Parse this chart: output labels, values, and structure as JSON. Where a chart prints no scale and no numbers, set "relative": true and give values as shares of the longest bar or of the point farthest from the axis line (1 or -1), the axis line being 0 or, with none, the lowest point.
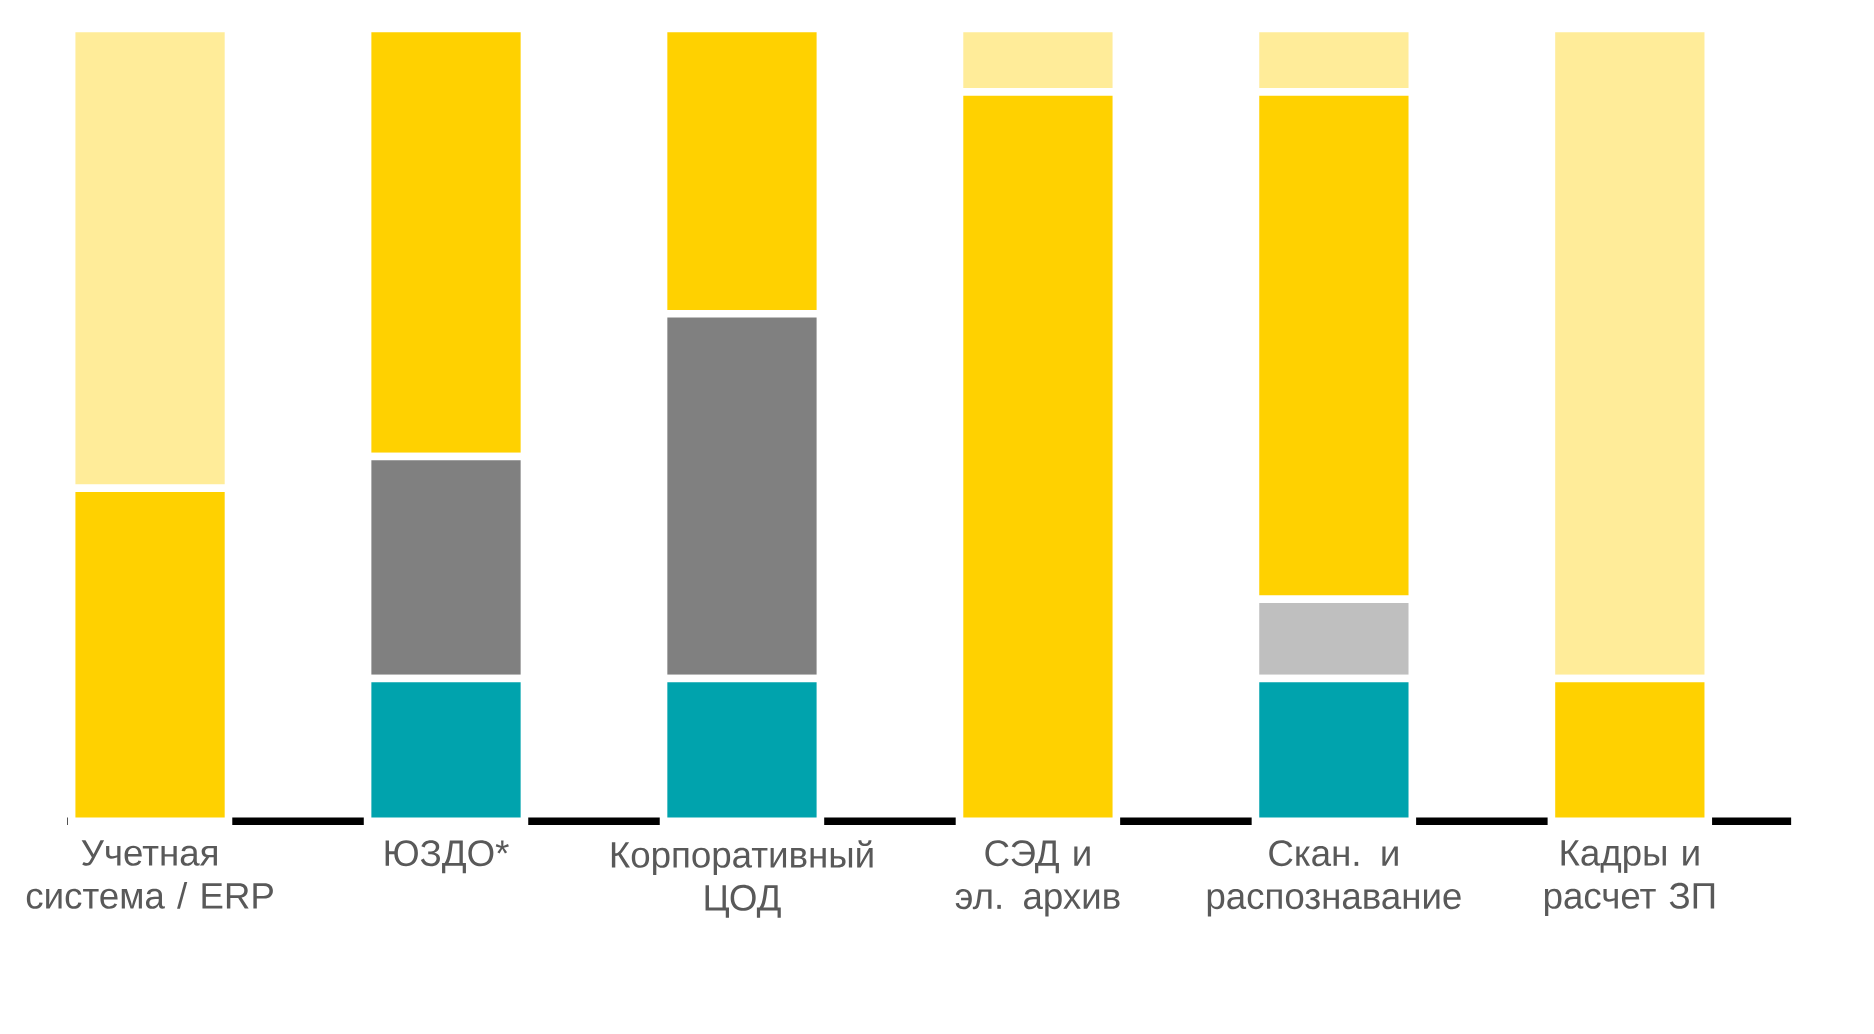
{
  "chart_data": {
    "type": "bar",
    "stacked": true,
    "relative": true,
    "categories": [
      "Учетная система / ERP",
      "ЮЗДО*",
      "Корпоративный ЦОД",
      "СЭД и эл. архив",
      "Скан. и распознавание",
      "Кадры и расчет ЗП"
    ],
    "series": [
      {
        "color": "#00a3ad",
        "values": [
          null,
          0.18,
          0.18,
          null,
          0.18,
          null
        ]
      },
      {
        "color": "#808080",
        "values": [
          null,
          0.28,
          0.46,
          null,
          null,
          null
        ]
      },
      {
        "color": "#bfbfbf",
        "values": [
          null,
          null,
          null,
          null,
          0.1,
          null
        ]
      },
      {
        "color": "#ffd100",
        "values": [
          0.42,
          0.54,
          0.36,
          0.92,
          0.64,
          0.18
        ]
      },
      {
        "color": "#ffec99",
        "values": [
          0.58,
          null,
          null,
          0.08,
          0.08,
          0.82
        ]
      }
    ]
  }
}
